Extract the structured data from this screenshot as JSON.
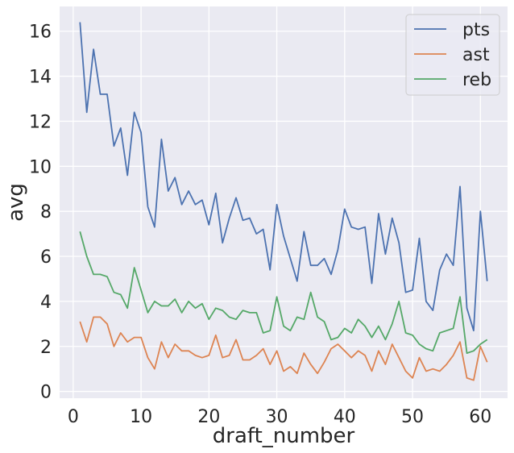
{
  "chart_data": {
    "type": "line",
    "xlabel": "draft_number",
    "ylabel": "avg",
    "xlim": [
      -2,
      64
    ],
    "ylim": [
      -0.3,
      17.1
    ],
    "xticks": [
      0,
      10,
      20,
      30,
      40,
      50,
      60
    ],
    "yticks": [
      0,
      2,
      4,
      6,
      8,
      10,
      12,
      14,
      16
    ],
    "grid": true,
    "legend_position": "top-right",
    "x": [
      1,
      2,
      3,
      4,
      5,
      6,
      7,
      8,
      9,
      10,
      11,
      12,
      13,
      14,
      15,
      16,
      17,
      18,
      19,
      20,
      21,
      22,
      23,
      24,
      25,
      26,
      27,
      28,
      29,
      30,
      31,
      32,
      33,
      34,
      35,
      36,
      37,
      38,
      39,
      40,
      41,
      42,
      43,
      44,
      45,
      46,
      47,
      48,
      49,
      50,
      51,
      52,
      53,
      54,
      55,
      56,
      57,
      58,
      59,
      60,
      61
    ],
    "series": [
      {
        "name": "pts",
        "color": "#4c72b0",
        "values": [
          16.4,
          12.4,
          15.2,
          13.2,
          13.2,
          10.9,
          11.7,
          9.6,
          12.4,
          11.5,
          8.2,
          7.3,
          11.2,
          8.9,
          9.5,
          8.3,
          8.9,
          8.3,
          8.5,
          7.4,
          8.8,
          6.6,
          7.7,
          8.6,
          7.6,
          7.7,
          7.0,
          7.2,
          5.4,
          8.3,
          6.9,
          5.9,
          4.9,
          7.1,
          5.6,
          5.6,
          5.9,
          5.2,
          6.3,
          8.1,
          7.3,
          7.2,
          7.3,
          4.8,
          7.9,
          6.1,
          7.7,
          6.6,
          4.4,
          4.5,
          6.8,
          4.0,
          3.6,
          5.4,
          6.1,
          5.6,
          9.1,
          3.7,
          2.7,
          8.0,
          4.9
        ]
      },
      {
        "name": "ast",
        "color": "#dd8452",
        "values": [
          3.1,
          2.2,
          3.3,
          3.3,
          3.0,
          2.0,
          2.6,
          2.2,
          2.4,
          2.4,
          1.5,
          1.0,
          2.2,
          1.5,
          2.1,
          1.8,
          1.8,
          1.6,
          1.5,
          1.6,
          2.5,
          1.5,
          1.6,
          2.3,
          1.4,
          1.4,
          1.6,
          1.9,
          1.2,
          1.8,
          0.9,
          1.1,
          0.8,
          1.7,
          1.2,
          0.8,
          1.3,
          1.9,
          2.1,
          1.8,
          1.5,
          1.8,
          1.6,
          0.9,
          1.8,
          1.2,
          2.1,
          1.5,
          0.9,
          0.6,
          1.5,
          0.9,
          1.0,
          0.9,
          1.2,
          1.6,
          2.2,
          0.6,
          0.5,
          2.0,
          1.3
        ]
      },
      {
        "name": "reb",
        "color": "#55a868",
        "values": [
          7.1,
          6.0,
          5.2,
          5.2,
          5.1,
          4.4,
          4.3,
          3.7,
          5.5,
          4.5,
          3.5,
          4.0,
          3.8,
          3.8,
          4.1,
          3.5,
          4.0,
          3.7,
          3.9,
          3.2,
          3.7,
          3.6,
          3.3,
          3.2,
          3.6,
          3.5,
          3.5,
          2.6,
          2.7,
          4.2,
          2.9,
          2.7,
          3.3,
          3.2,
          4.4,
          3.3,
          3.1,
          2.3,
          2.4,
          2.8,
          2.6,
          3.2,
          2.9,
          2.4,
          2.9,
          2.3,
          3.0,
          4.0,
          2.6,
          2.5,
          2.1,
          1.9,
          1.8,
          2.6,
          2.7,
          2.8,
          4.2,
          1.7,
          1.8,
          2.1,
          2.3
        ]
      }
    ]
  }
}
